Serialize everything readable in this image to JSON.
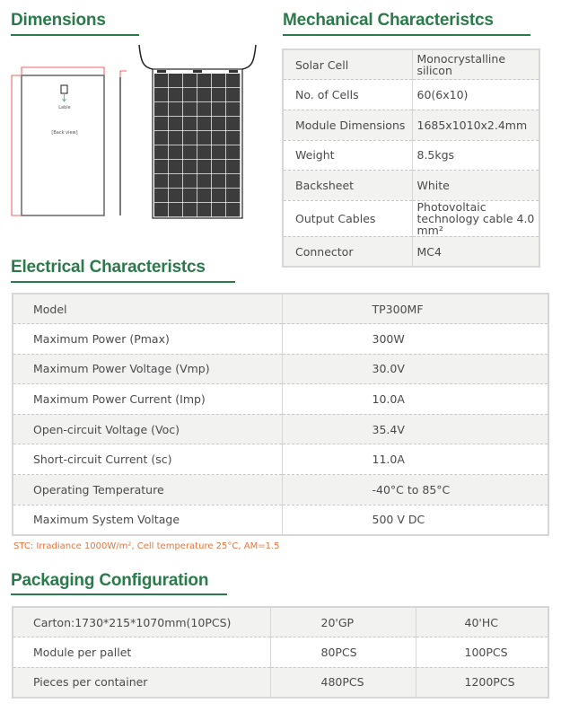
{
  "dimensions": {
    "title": "Dimensions",
    "label_text": "Lable",
    "back_view_text": "[Back view]"
  },
  "mechanical": {
    "title": "Mechanical Characteristcs",
    "rows": [
      {
        "label": "Solar Cell",
        "value": "Monocrystalline silicon"
      },
      {
        "label": "No. of Cells",
        "value": "60(6x10)"
      },
      {
        "label": "Module Dimensions",
        "value": "1685x1010x2.4mm"
      },
      {
        "label": "Weight",
        "value": "8.5kgs"
      },
      {
        "label": "Backsheet",
        "value": "White"
      },
      {
        "label": "Output Cables",
        "value": "Photovoltaic technology cable 4.0 mm²"
      },
      {
        "label": "Connector",
        "value": "MC4"
      }
    ]
  },
  "electrical": {
    "title": "Electrical Characteristcs",
    "rows": [
      {
        "label": "Model",
        "value": "TP300MF"
      },
      {
        "label": "Maximum Power (Pmax)",
        "value": "300W"
      },
      {
        "label": "Maximum Power Voltage (Vmp)",
        "value": "30.0V"
      },
      {
        "label": "Maximum Power Current (Imp)",
        "value": "10.0A"
      },
      {
        "label": "Open-circuit Voltage (Voc)",
        "value": "35.4V"
      },
      {
        "label": "Short-circuit Current (sc)",
        "value": "11.0A"
      },
      {
        "label": "Operating Temperature",
        "value": "-40°C to 85°C"
      },
      {
        "label": "Maximum System Voltage",
        "value": "500 V DC"
      }
    ],
    "stc_note": "STC:  Irradiance 1000W/m², Cell temperature 25°C, AM=1.5"
  },
  "packaging": {
    "title": "Packaging Configuration",
    "rows": [
      {
        "label": "Carton:1730*215*1070mm(10PCS)",
        "c1": "20'GP",
        "c2": "40'HC"
      },
      {
        "label": "Module per pallet",
        "c1": "80PCS",
        "c2": "100PCS"
      },
      {
        "label": "Pieces per container",
        "c1": "480PCS",
        "c2": "1200PCS"
      }
    ]
  },
  "colors": {
    "heading": "#2a7a4a",
    "note": "#e8743a",
    "cell": "#3c3c3c"
  }
}
